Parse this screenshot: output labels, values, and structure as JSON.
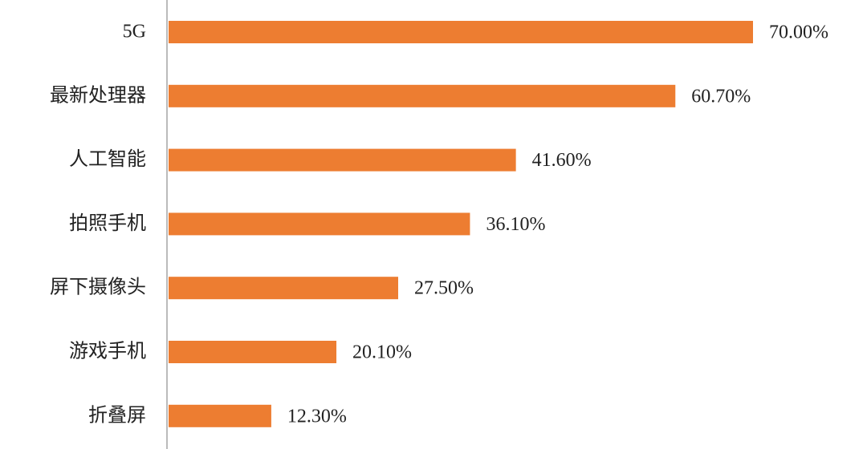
{
  "chart_data": {
    "type": "bar",
    "orientation": "horizontal",
    "categories": [
      "5G",
      "最新处理器",
      "人工智能",
      "拍照手机",
      "屏下摄像头",
      "游戏手机",
      "折叠屏"
    ],
    "values": [
      70,
      60.7,
      41.6,
      36.1,
      27.5,
      20.1,
      12.3
    ],
    "value_labels": [
      "70.00%",
      "60.70%",
      "41.60%",
      "36.10%",
      "27.50%",
      "20.10%",
      "12.30%"
    ],
    "color": "#ed7d31"
  }
}
